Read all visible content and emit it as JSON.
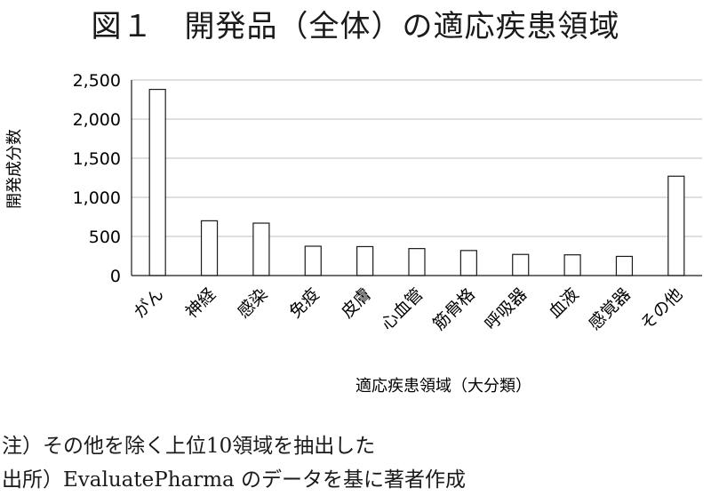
{
  "chart_data": {
    "type": "bar",
    "title": "図１　開発品（全体）の適応疾患領域",
    "xlabel": "適応疾患領域（大分類）",
    "ylabel": "開発成分数",
    "categories": [
      "がん",
      "神経",
      "感染",
      "免疫",
      "皮膚",
      "心血管",
      "筋骨格",
      "呼吸器",
      "血液",
      "感覚器",
      "その他"
    ],
    "values": [
      2380,
      700,
      670,
      375,
      370,
      345,
      320,
      270,
      265,
      245,
      1270
    ],
    "ylim": [
      0,
      2500
    ],
    "yticks": [
      0,
      500,
      1000,
      1500,
      2000,
      2500
    ],
    "ytick_labels": [
      "0",
      "500",
      "1,000",
      "1,500",
      "2,000",
      "2,500"
    ],
    "grid": true,
    "colors": {
      "bar_fill": "#ffffff",
      "bar_stroke": "#1a1a1a",
      "grid": "#bfbfbf",
      "axis": "#1a1a1a"
    }
  },
  "notes": {
    "line1": "注）その他を除く上位10領域を抽出した",
    "line2": "出所）EvaluatePharma のデータを基に著者作成"
  }
}
